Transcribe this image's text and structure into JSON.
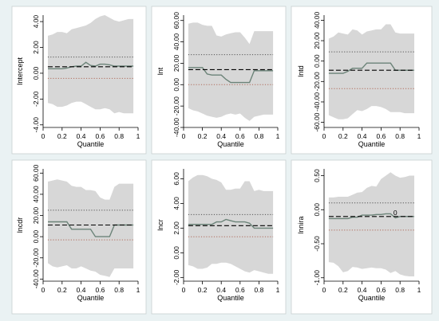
{
  "figure": {
    "background": "#eaf2f3",
    "colors": {
      "band": "#d7d7d7",
      "estimate_line": "#6b8378",
      "ols_line": "#000000",
      "ci_dotted_upper": "#555555",
      "ci_dotted_lower": "#b06a5a"
    }
  },
  "chart_data": [
    {
      "type": "line",
      "ylabel": "Intercept",
      "xlabel": "Quantile",
      "xlim": [
        0,
        1
      ],
      "ylim": [
        -4.2,
        4.5
      ],
      "x_ticks": [
        "0",
        "0.2",
        "0.4",
        "0.6",
        "0.8",
        "1"
      ],
      "y_ticks": [
        "-4.00",
        "-2.00",
        "0.00",
        "2.00",
        "4.00"
      ],
      "y_tick_values": [
        -4,
        -2,
        0,
        2,
        4
      ],
      "series": [
        {
          "role": "ci_upper",
          "x": [
            0.05,
            0.1,
            0.15,
            0.2,
            0.25,
            0.3,
            0.35,
            0.4,
            0.45,
            0.5,
            0.55,
            0.6,
            0.65,
            0.7,
            0.75,
            0.8,
            0.85,
            0.9,
            0.95
          ],
          "y": [
            2.9,
            3.0,
            3.2,
            3.2,
            3.1,
            3.4,
            3.5,
            3.6,
            3.7,
            3.9,
            4.2,
            4.4,
            4.5,
            4.3,
            4.1,
            4.0,
            4.1,
            4.2,
            4.2
          ]
        },
        {
          "role": "ci_lower",
          "x": [
            0.05,
            0.1,
            0.15,
            0.2,
            0.25,
            0.3,
            0.35,
            0.4,
            0.45,
            0.5,
            0.55,
            0.6,
            0.65,
            0.7,
            0.75,
            0.8,
            0.85,
            0.9,
            0.95
          ],
          "y": [
            -2.3,
            -2.4,
            -2.6,
            -2.6,
            -2.5,
            -2.3,
            -2.2,
            -2.2,
            -2.4,
            -2.6,
            -2.8,
            -2.8,
            -2.7,
            -2.8,
            -3.1,
            -3.0,
            -3.1,
            -3.1,
            -3.1
          ]
        },
        {
          "role": "estimate",
          "x": [
            0.05,
            0.1,
            0.15,
            0.2,
            0.25,
            0.3,
            0.35,
            0.4,
            0.45,
            0.5,
            0.55,
            0.6,
            0.65,
            0.7,
            0.75,
            0.8,
            0.85,
            0.9,
            0.95
          ],
          "y": [
            0.35,
            0.35,
            0.35,
            0.35,
            0.4,
            0.5,
            0.55,
            0.55,
            0.85,
            0.6,
            0.55,
            0.7,
            0.7,
            0.65,
            0.55,
            0.55,
            0.55,
            0.55,
            0.55
          ]
        }
      ],
      "ols": 0.5,
      "ols_ci": [
        -0.4,
        1.25
      ]
    },
    {
      "type": "line",
      "ylabel": "lnt",
      "xlabel": "Quantile",
      "xlim": [
        0,
        1
      ],
      "ylim": [
        -40,
        65
      ],
      "x_ticks": [
        "0",
        "0.2",
        "0.4",
        "0.6",
        "0.8",
        "1"
      ],
      "y_ticks": [
        "-40.00",
        "-20.00",
        "0.00",
        "20.00",
        "40.00",
        "60.00"
      ],
      "y_tick_values": [
        -40,
        -20,
        0,
        20,
        40,
        60
      ],
      "series": [
        {
          "role": "ci_upper",
          "x": [
            0.05,
            0.1,
            0.15,
            0.2,
            0.25,
            0.3,
            0.35,
            0.4,
            0.45,
            0.5,
            0.55,
            0.6,
            0.65,
            0.7,
            0.75,
            0.8,
            0.85,
            0.9,
            0.95
          ],
          "y": [
            57,
            58,
            58,
            56,
            55,
            55,
            46,
            45,
            47,
            48,
            49,
            49,
            44,
            38,
            50,
            50,
            50,
            50,
            50
          ]
        },
        {
          "role": "ci_lower",
          "x": [
            0.05,
            0.1,
            0.15,
            0.2,
            0.25,
            0.3,
            0.35,
            0.4,
            0.45,
            0.5,
            0.55,
            0.6,
            0.65,
            0.7,
            0.75,
            0.8,
            0.85,
            0.9,
            0.95
          ],
          "y": [
            -22,
            -24,
            -25,
            -27,
            -29,
            -30,
            -31,
            -30,
            -28,
            -27,
            -28,
            -27,
            -31,
            -34,
            -30,
            -29,
            -28,
            -28,
            -28
          ]
        },
        {
          "role": "estimate",
          "x": [
            0.05,
            0.1,
            0.15,
            0.2,
            0.25,
            0.3,
            0.35,
            0.4,
            0.45,
            0.5,
            0.55,
            0.6,
            0.65,
            0.7,
            0.75,
            0.8,
            0.85,
            0.9,
            0.95
          ],
          "y": [
            16,
            16,
            16,
            16,
            10,
            9,
            9,
            9,
            5,
            2,
            2,
            2,
            2,
            2,
            13,
            13,
            13,
            13,
            13
          ]
        }
      ],
      "ols": 14,
      "ols_ci": [
        0,
        28
      ]
    },
    {
      "type": "line",
      "ylabel": "lntd",
      "xlabel": "Quantile",
      "xlim": [
        0,
        1
      ],
      "ylim": [
        -65,
        45
      ],
      "x_ticks": [
        "0",
        "0.2",
        "0.4",
        "0.6",
        "0.8",
        "1"
      ],
      "y_ticks": [
        "-60.00",
        "-40.00",
        "-20.00",
        "0.00",
        "20.00",
        "40.00"
      ],
      "y_tick_values": [
        -60,
        -40,
        -20,
        0,
        20,
        40
      ],
      "series": [
        {
          "role": "ci_upper",
          "x": [
            0.05,
            0.1,
            0.15,
            0.2,
            0.25,
            0.3,
            0.35,
            0.4,
            0.45,
            0.5,
            0.55,
            0.6,
            0.65,
            0.7,
            0.75,
            0.8,
            0.85,
            0.9,
            0.95
          ],
          "y": [
            22,
            24,
            28,
            27,
            26,
            31,
            30,
            26,
            29,
            30,
            31,
            31,
            36,
            36,
            28,
            27,
            27,
            27,
            27
          ]
        },
        {
          "role": "ci_lower",
          "x": [
            0.05,
            0.1,
            0.15,
            0.2,
            0.25,
            0.3,
            0.35,
            0.4,
            0.45,
            0.5,
            0.55,
            0.6,
            0.65,
            0.7,
            0.75,
            0.8,
            0.85,
            0.9,
            0.95
          ],
          "y": [
            -53,
            -55,
            -57,
            -57,
            -56,
            -52,
            -48,
            -49,
            -47,
            -44,
            -44,
            -45,
            -47,
            -50,
            -50,
            -50,
            -51,
            -51,
            -51
          ]
        },
        {
          "role": "estimate",
          "x": [
            0.05,
            0.1,
            0.15,
            0.2,
            0.25,
            0.3,
            0.35,
            0.4,
            0.45,
            0.5,
            0.55,
            0.6,
            0.65,
            0.7,
            0.75,
            0.8,
            0.85,
            0.9,
            0.95
          ],
          "y": [
            -12,
            -12,
            -12,
            -12,
            -10,
            -7,
            -7,
            -7,
            -2,
            -2,
            -2,
            -2,
            -2,
            -2,
            -9,
            -9,
            -9,
            -9,
            -9
          ]
        }
      ],
      "ols": -9,
      "ols_ci": [
        -27,
        9
      ]
    },
    {
      "type": "line",
      "ylabel": "lncdr",
      "xlabel": "Quantile",
      "xlim": [
        0,
        1
      ],
      "ylim": [
        -42,
        64
      ],
      "x_ticks": [
        "0",
        "0.2",
        "0.4",
        "0.6",
        "0.8",
        "1"
      ],
      "y_ticks": [
        "-40.00",
        "-20.00",
        "0.00",
        "20.00",
        "40.00",
        "60.00"
      ],
      "y_tick_values": [
        -40,
        -20,
        0,
        20,
        40,
        60
      ],
      "series": [
        {
          "role": "ci_upper",
          "x": [
            0.05,
            0.1,
            0.15,
            0.2,
            0.25,
            0.3,
            0.35,
            0.4,
            0.45,
            0.5,
            0.55,
            0.6,
            0.65,
            0.7,
            0.75,
            0.8,
            0.85,
            0.9,
            0.95
          ],
          "y": [
            52,
            53,
            54,
            53,
            52,
            48,
            47,
            47,
            44,
            44,
            43,
            37,
            35,
            35,
            47,
            50,
            50,
            50,
            50
          ]
        },
        {
          "role": "ci_lower",
          "x": [
            0.05,
            0.1,
            0.15,
            0.2,
            0.25,
            0.3,
            0.35,
            0.4,
            0.45,
            0.5,
            0.55,
            0.6,
            0.65,
            0.7,
            0.75,
            0.8,
            0.85,
            0.9,
            0.95
          ],
          "y": [
            -25,
            -28,
            -29,
            -28,
            -27,
            -30,
            -30,
            -28,
            -30,
            -32,
            -33,
            -36,
            -37,
            -38,
            -30,
            -30,
            -30,
            -30,
            -30
          ]
        },
        {
          "role": "estimate",
          "x": [
            0.05,
            0.1,
            0.15,
            0.2,
            0.25,
            0.3,
            0.35,
            0.4,
            0.45,
            0.5,
            0.55,
            0.6,
            0.65,
            0.7,
            0.75,
            0.8,
            0.85,
            0.9,
            0.95
          ],
          "y": [
            14,
            14,
            14,
            14,
            14,
            7,
            7,
            7,
            7,
            7,
            0,
            0,
            0,
            0,
            11,
            11,
            11,
            11,
            11
          ]
        }
      ],
      "ols": 11,
      "ols_ci": [
        -3,
        25
      ]
    },
    {
      "type": "line",
      "ylabel": "lncr",
      "xlabel": "Quantile",
      "xlim": [
        0,
        1
      ],
      "ylim": [
        -2.3,
        6.8
      ],
      "x_ticks": [
        "0",
        "0.2",
        "0.4",
        "0.6",
        "0.8",
        "1"
      ],
      "y_ticks": [
        "-2.00",
        "0.00",
        "2.00",
        "4.00",
        "6.00"
      ],
      "y_tick_values": [
        -2,
        0,
        2,
        4,
        6
      ],
      "series": [
        {
          "role": "ci_upper",
          "x": [
            0.05,
            0.1,
            0.15,
            0.2,
            0.25,
            0.3,
            0.35,
            0.4,
            0.45,
            0.5,
            0.55,
            0.6,
            0.65,
            0.7,
            0.75,
            0.8,
            0.85,
            0.9,
            0.95
          ],
          "y": [
            5.8,
            6.1,
            6.3,
            6.3,
            6.2,
            6.0,
            5.9,
            5.7,
            5.1,
            5.1,
            5.2,
            5.2,
            5.8,
            5.8,
            5.0,
            5.1,
            5.0,
            5.0,
            5.0
          ]
        },
        {
          "role": "ci_lower",
          "x": [
            0.05,
            0.1,
            0.15,
            0.2,
            0.25,
            0.3,
            0.35,
            0.4,
            0.45,
            0.5,
            0.55,
            0.6,
            0.65,
            0.7,
            0.75,
            0.8,
            0.85,
            0.9,
            0.95
          ],
          "y": [
            -1.0,
            -1.1,
            -1.3,
            -1.3,
            -1.2,
            -0.9,
            -0.9,
            -0.8,
            -0.8,
            -0.9,
            -1.1,
            -1.3,
            -1.5,
            -1.6,
            -1.4,
            -1.5,
            -1.6,
            -1.7,
            -1.7
          ]
        },
        {
          "role": "estimate",
          "x": [
            0.05,
            0.1,
            0.15,
            0.2,
            0.25,
            0.3,
            0.35,
            0.4,
            0.45,
            0.5,
            0.55,
            0.6,
            0.65,
            0.7,
            0.75,
            0.8,
            0.85,
            0.9,
            0.95
          ],
          "y": [
            2.3,
            2.3,
            2.3,
            2.3,
            2.3,
            2.3,
            2.5,
            2.5,
            2.7,
            2.6,
            2.5,
            2.5,
            2.5,
            2.4,
            2.0,
            2.0,
            2.0,
            2.0,
            2.0
          ]
        }
      ],
      "ols": 2.2,
      "ols_ci": [
        1.3,
        3.1
      ]
    },
    {
      "type": "line",
      "ylabel": "lnnira",
      "xlabel": "Quantile",
      "xlim": [
        0,
        1
      ],
      "ylim": [
        -1.05,
        0.6
      ],
      "x_ticks": [
        "0",
        "0.2",
        "0.4",
        "0.6",
        "0.8",
        "1"
      ],
      "y_ticks": [
        "-1.00",
        "-0.50",
        "0.00",
        "0.50"
      ],
      "y_tick_values": [
        -1,
        -0.5,
        0,
        0.5
      ],
      "annotation": {
        "text": "0",
        "x": 0.75,
        "y": -0.08
      },
      "series": [
        {
          "role": "ci_upper",
          "x": [
            0.05,
            0.1,
            0.15,
            0.2,
            0.25,
            0.3,
            0.35,
            0.4,
            0.45,
            0.5,
            0.55,
            0.6,
            0.65,
            0.7,
            0.75,
            0.8,
            0.85,
            0.9,
            0.95
          ],
          "y": [
            0.18,
            0.18,
            0.19,
            0.19,
            0.19,
            0.22,
            0.25,
            0.26,
            0.32,
            0.35,
            0.34,
            0.45,
            0.5,
            0.55,
            0.5,
            0.47,
            0.48,
            0.5,
            0.5
          ]
        },
        {
          "role": "ci_lower",
          "x": [
            0.05,
            0.1,
            0.15,
            0.2,
            0.25,
            0.3,
            0.35,
            0.4,
            0.45,
            0.5,
            0.55,
            0.6,
            0.65,
            0.7,
            0.75,
            0.8,
            0.85,
            0.9,
            0.95
          ],
          "y": [
            -0.77,
            -0.78,
            -0.83,
            -0.92,
            -0.9,
            -0.84,
            -0.85,
            -0.87,
            -0.86,
            -0.85,
            -0.86,
            -0.86,
            -0.88,
            -0.93,
            -0.9,
            -0.95,
            -0.97,
            -0.98,
            -0.98
          ]
        },
        {
          "role": "estimate",
          "x": [
            0.05,
            0.1,
            0.15,
            0.2,
            0.25,
            0.3,
            0.35,
            0.4,
            0.45,
            0.5,
            0.55,
            0.6,
            0.65,
            0.7,
            0.75,
            0.8,
            0.85,
            0.9,
            0.95
          ],
          "y": [
            -0.13,
            -0.13,
            -0.13,
            -0.13,
            -0.13,
            -0.11,
            -0.11,
            -0.08,
            -0.08,
            -0.08,
            -0.07,
            -0.07,
            -0.06,
            -0.06,
            -0.12,
            -0.1,
            -0.1,
            -0.1,
            -0.1
          ]
        }
      ],
      "ols": -0.1,
      "ols_ci": [
        -0.3,
        0.1
      ]
    }
  ]
}
